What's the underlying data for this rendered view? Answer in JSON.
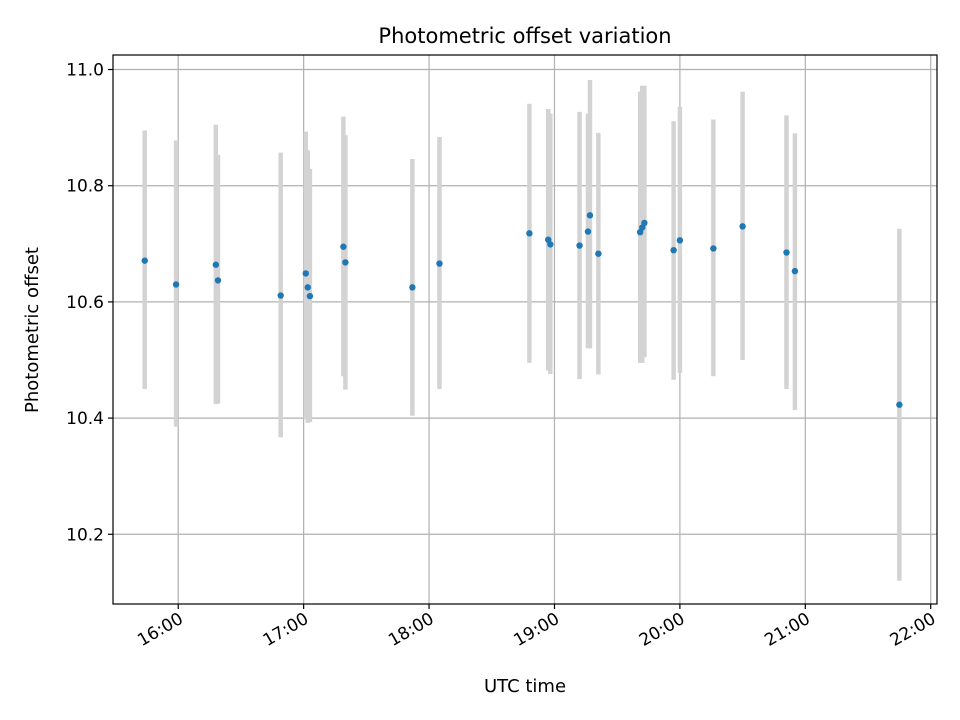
{
  "chart_data": {
    "type": "scatter",
    "title": "Photometric offset variation",
    "xlabel": "UTC time",
    "ylabel": "Photometric offset",
    "x_unit": "hours (UTC)",
    "xlim": [
      15.48,
      22.05
    ],
    "ylim": [
      10.08,
      11.025
    ],
    "xticks": [
      16,
      17,
      18,
      19,
      20,
      21,
      22
    ],
    "xtick_labels": [
      "16:00",
      "17:00",
      "18:00",
      "19:00",
      "20:00",
      "21:00",
      "22:00"
    ],
    "yticks": [
      10.2,
      10.4,
      10.6,
      10.8,
      11.0
    ],
    "ytick_labels": [
      "10.2",
      "10.4",
      "10.6",
      "10.8",
      "11.0"
    ],
    "grid": true,
    "marker_color": "#1f77b4",
    "errorbar_color": "#d3d3d3",
    "points": [
      {
        "x": 15.733,
        "y": 10.671,
        "lo": 10.45,
        "hi": 10.895
      },
      {
        "x": 15.983,
        "y": 10.63,
        "lo": 10.385,
        "hi": 10.878
      },
      {
        "x": 16.3,
        "y": 10.664,
        "lo": 10.424,
        "hi": 10.905
      },
      {
        "x": 16.317,
        "y": 10.637,
        "lo": 10.425,
        "hi": 10.853
      },
      {
        "x": 16.817,
        "y": 10.611,
        "lo": 10.367,
        "hi": 10.857
      },
      {
        "x": 17.017,
        "y": 10.649,
        "lo": 10.398,
        "hi": 10.893
      },
      {
        "x": 17.033,
        "y": 10.625,
        "lo": 10.392,
        "hi": 10.861
      },
      {
        "x": 17.05,
        "y": 10.61,
        "lo": 10.393,
        "hi": 10.829
      },
      {
        "x": 17.317,
        "y": 10.695,
        "lo": 10.472,
        "hi": 10.919
      },
      {
        "x": 17.333,
        "y": 10.668,
        "lo": 10.449,
        "hi": 10.887
      },
      {
        "x": 17.867,
        "y": 10.625,
        "lo": 10.404,
        "hi": 10.846
      },
      {
        "x": 18.083,
        "y": 10.666,
        "lo": 10.45,
        "hi": 10.884
      },
      {
        "x": 18.8,
        "y": 10.718,
        "lo": 10.495,
        "hi": 10.941
      },
      {
        "x": 18.95,
        "y": 10.707,
        "lo": 10.482,
        "hi": 10.932
      },
      {
        "x": 18.967,
        "y": 10.699,
        "lo": 10.476,
        "hi": 10.924
      },
      {
        "x": 19.2,
        "y": 10.697,
        "lo": 10.467,
        "hi": 10.927
      },
      {
        "x": 19.267,
        "y": 10.721,
        "lo": 10.52,
        "hi": 10.924
      },
      {
        "x": 19.283,
        "y": 10.749,
        "lo": 10.52,
        "hi": 10.982
      },
      {
        "x": 19.35,
        "y": 10.683,
        "lo": 10.475,
        "hi": 10.891
      },
      {
        "x": 19.683,
        "y": 10.72,
        "lo": 10.495,
        "hi": 10.962
      },
      {
        "x": 19.7,
        "y": 10.728,
        "lo": 10.495,
        "hi": 10.972
      },
      {
        "x": 19.717,
        "y": 10.736,
        "lo": 10.505,
        "hi": 10.972
      },
      {
        "x": 19.95,
        "y": 10.689,
        "lo": 10.466,
        "hi": 10.911
      },
      {
        "x": 20.0,
        "y": 10.706,
        "lo": 10.478,
        "hi": 10.936
      },
      {
        "x": 20.267,
        "y": 10.692,
        "lo": 10.472,
        "hi": 10.914
      },
      {
        "x": 20.5,
        "y": 10.73,
        "lo": 10.5,
        "hi": 10.962
      },
      {
        "x": 20.85,
        "y": 10.685,
        "lo": 10.45,
        "hi": 10.921
      },
      {
        "x": 20.917,
        "y": 10.653,
        "lo": 10.414,
        "hi": 10.89
      },
      {
        "x": 21.75,
        "y": 10.423,
        "lo": 10.12,
        "hi": 10.726
      }
    ]
  }
}
